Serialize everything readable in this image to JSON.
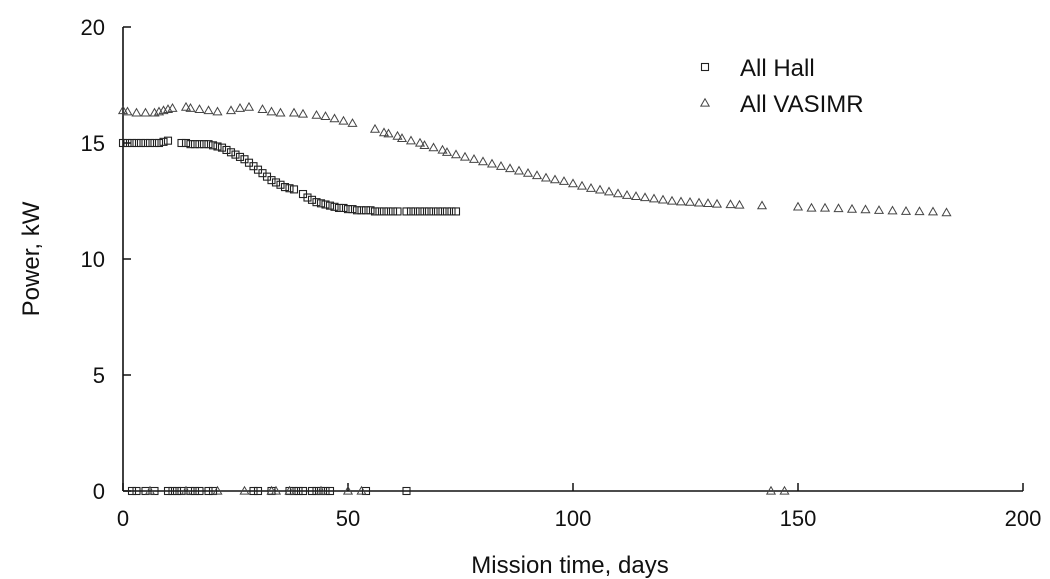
{
  "chart_data": {
    "type": "scatter",
    "xlabel": "Mission time, days",
    "ylabel": "Power, kW",
    "xlim": [
      0,
      200
    ],
    "ylim": [
      0,
      20
    ],
    "xticks": [
      0,
      50,
      100,
      150,
      200
    ],
    "yticks": [
      0,
      5,
      10,
      15,
      20
    ],
    "grid": false,
    "legend_position": "top-right",
    "series": [
      {
        "name": "All Hall",
        "marker": "square",
        "color": "#222222",
        "x": [
          0,
          1,
          2,
          3,
          4,
          5,
          6,
          7,
          8,
          9,
          10,
          13,
          14,
          15,
          16,
          17,
          18,
          19,
          20,
          21,
          22,
          23,
          24,
          25,
          26,
          27,
          28,
          29,
          30,
          31,
          32,
          33,
          34,
          35,
          36,
          37,
          38,
          40,
          41,
          42,
          43,
          44,
          45,
          46,
          47,
          48,
          49,
          50,
          51,
          52,
          53,
          54,
          55,
          56,
          57,
          58,
          59,
          60,
          61,
          63,
          64,
          65,
          66,
          67,
          68,
          69,
          70,
          71,
          72,
          73,
          74,
          2,
          3,
          5,
          7,
          10,
          11,
          12,
          13,
          15,
          16,
          17,
          19,
          20,
          29,
          30,
          33,
          37,
          38,
          39,
          40,
          42,
          43,
          44,
          45,
          46,
          54,
          63
        ],
        "y": [
          15.0,
          15.0,
          15.0,
          15.0,
          15.0,
          15.0,
          15.0,
          15.0,
          15.0,
          15.05,
          15.1,
          15.0,
          15.0,
          14.95,
          14.95,
          14.95,
          14.95,
          14.95,
          14.9,
          14.85,
          14.8,
          14.7,
          14.6,
          14.5,
          14.4,
          14.3,
          14.15,
          14.0,
          13.85,
          13.7,
          13.55,
          13.4,
          13.3,
          13.2,
          13.1,
          13.05,
          13.0,
          12.8,
          12.65,
          12.55,
          12.45,
          12.4,
          12.35,
          12.3,
          12.25,
          12.2,
          12.2,
          12.15,
          12.15,
          12.1,
          12.1,
          12.1,
          12.1,
          12.05,
          12.05,
          12.05,
          12.05,
          12.05,
          12.05,
          12.05,
          12.05,
          12.05,
          12.05,
          12.05,
          12.05,
          12.05,
          12.05,
          12.05,
          12.05,
          12.05,
          12.05,
          0,
          0,
          0,
          0,
          0,
          0,
          0,
          0,
          0,
          0,
          0,
          0,
          0,
          0,
          0,
          0,
          0,
          0,
          0,
          0,
          0,
          0,
          0,
          0,
          0,
          0,
          0
        ]
      },
      {
        "name": "All VASIMR",
        "marker": "triangle",
        "color": "#444444",
        "x": [
          0,
          1,
          3,
          5,
          7,
          8,
          9,
          10,
          11,
          14,
          15,
          17,
          19,
          21,
          24,
          26,
          28,
          31,
          33,
          35,
          38,
          40,
          43,
          45,
          47,
          49,
          51,
          56,
          58,
          59,
          61,
          62,
          64,
          66,
          67,
          69,
          71,
          72,
          74,
          76,
          78,
          80,
          82,
          84,
          86,
          88,
          90,
          92,
          94,
          96,
          98,
          100,
          102,
          104,
          106,
          108,
          110,
          112,
          114,
          116,
          118,
          120,
          122,
          124,
          126,
          128,
          130,
          132,
          135,
          137,
          142,
          150,
          153,
          156,
          159,
          162,
          165,
          168,
          171,
          174,
          177,
          180,
          183,
          144,
          147,
          6,
          14,
          21,
          27,
          33,
          34,
          37,
          44,
          50,
          53
        ],
        "y": [
          16.4,
          16.35,
          16.3,
          16.3,
          16.3,
          16.35,
          16.4,
          16.45,
          16.5,
          16.55,
          16.5,
          16.45,
          16.4,
          16.35,
          16.4,
          16.5,
          16.55,
          16.45,
          16.35,
          16.3,
          16.3,
          16.25,
          16.2,
          16.15,
          16.05,
          15.95,
          15.85,
          15.6,
          15.45,
          15.4,
          15.3,
          15.2,
          15.1,
          15.0,
          14.9,
          14.8,
          14.7,
          14.6,
          14.5,
          14.4,
          14.3,
          14.2,
          14.1,
          14.0,
          13.9,
          13.8,
          13.7,
          13.6,
          13.5,
          13.42,
          13.35,
          13.25,
          13.15,
          13.05,
          12.98,
          12.9,
          12.82,
          12.75,
          12.7,
          12.65,
          12.6,
          12.55,
          12.5,
          12.47,
          12.45,
          12.42,
          12.4,
          12.37,
          12.35,
          12.33,
          12.3,
          12.25,
          12.2,
          12.2,
          12.18,
          12.15,
          12.13,
          12.1,
          12.08,
          12.06,
          12.05,
          12.04,
          12.0,
          0,
          0,
          0,
          0,
          0,
          0,
          0,
          0,
          0,
          0,
          0,
          0
        ]
      }
    ]
  }
}
